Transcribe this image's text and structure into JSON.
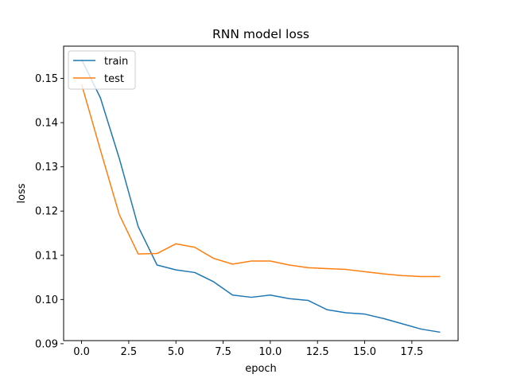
{
  "chart_data": {
    "type": "line",
    "title": "RNN model loss",
    "xlabel": "epoch",
    "ylabel": "loss",
    "xlim": [
      -0.95,
      19.95
    ],
    "ylim": [
      0.0907,
      0.1573
    ],
    "grid": false,
    "legend_position": "top-left",
    "x": [
      0,
      1,
      2,
      3,
      4,
      5,
      6,
      7,
      8,
      9,
      10,
      11,
      12,
      13,
      14,
      15,
      16,
      17,
      18,
      19
    ],
    "x_ticks": [
      {
        "value": 0,
        "label": "0.0"
      },
      {
        "value": 2.5,
        "label": "2.5"
      },
      {
        "value": 5,
        "label": "5.0"
      },
      {
        "value": 7.5,
        "label": "7.5"
      },
      {
        "value": 10,
        "label": "10.0"
      },
      {
        "value": 12.5,
        "label": "12.5"
      },
      {
        "value": 15,
        "label": "15.0"
      },
      {
        "value": 17.5,
        "label": "17.5"
      }
    ],
    "y_ticks": [
      {
        "value": 0.09,
        "label": "0.09"
      },
      {
        "value": 0.1,
        "label": "0.10"
      },
      {
        "value": 0.11,
        "label": "0.11"
      },
      {
        "value": 0.12,
        "label": "0.12"
      },
      {
        "value": 0.13,
        "label": "0.13"
      },
      {
        "value": 0.14,
        "label": "0.14"
      },
      {
        "value": 0.15,
        "label": "0.15"
      }
    ],
    "series": [
      {
        "name": "train",
        "color": "#1f77b4",
        "values": [
          0.1543,
          0.1456,
          0.1319,
          0.1165,
          0.1078,
          0.1067,
          0.1061,
          0.104,
          0.101,
          0.1005,
          0.101,
          0.1002,
          0.0998,
          0.0977,
          0.097,
          0.0967,
          0.0957,
          0.0945,
          0.0933,
          0.0926
        ]
      },
      {
        "name": "test",
        "color": "#ff7f0e",
        "values": [
          0.1487,
          0.1338,
          0.1192,
          0.1103,
          0.1104,
          0.1126,
          0.1118,
          0.1093,
          0.108,
          0.1087,
          0.1087,
          0.1078,
          0.1072,
          0.107,
          0.1068,
          0.1063,
          0.1058,
          0.1054,
          0.1052,
          0.1052
        ]
      }
    ]
  }
}
